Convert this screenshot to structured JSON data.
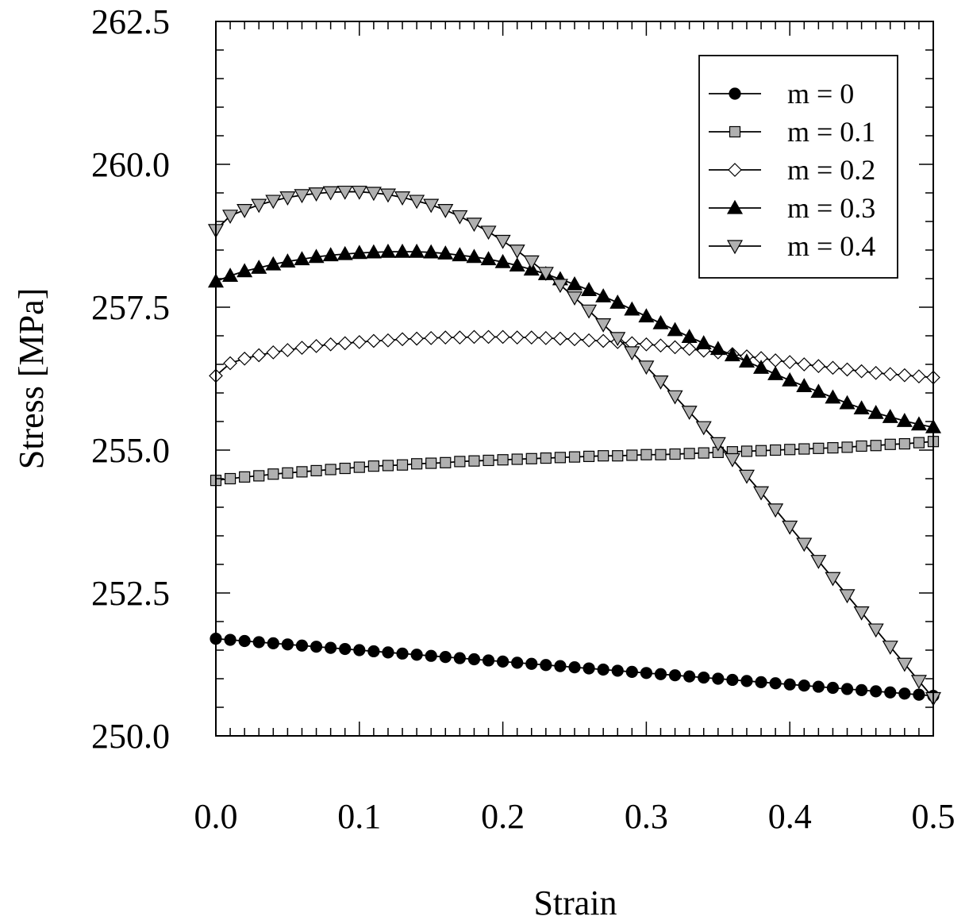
{
  "chart_data": {
    "type": "line",
    "title": "",
    "xlabel": "Strain",
    "ylabel": "Stress [MPa]",
    "xlim": [
      0.0,
      0.5
    ],
    "ylim": [
      250.0,
      262.5
    ],
    "x_ticks": [
      "0.0",
      "0.1",
      "0.2",
      "0.3",
      "0.4",
      "0.5"
    ],
    "y_ticks": [
      "250.0",
      "252.5",
      "255.0",
      "257.5",
      "260.0",
      "262.5"
    ],
    "grid": false,
    "legend_position": "top-right",
    "x": [
      0,
      0.01,
      0.02,
      0.03,
      0.04,
      0.05,
      0.06,
      0.07,
      0.08,
      0.09,
      0.1,
      0.11,
      0.12,
      0.13,
      0.14,
      0.15,
      0.16,
      0.17,
      0.18,
      0.19,
      0.2,
      0.21,
      0.22,
      0.23,
      0.24,
      0.25,
      0.26,
      0.27,
      0.28,
      0.29,
      0.3,
      0.31,
      0.32,
      0.33,
      0.34,
      0.35,
      0.36,
      0.37,
      0.38,
      0.39,
      0.4,
      0.41,
      0.42,
      0.43,
      0.44,
      0.45,
      0.46,
      0.47,
      0.48,
      0.49,
      0.5
    ],
    "series": [
      {
        "name": "m = 0",
        "marker": "circle",
        "fill": "#000000",
        "values": [
          251.7,
          251.68,
          251.66,
          251.64,
          251.62,
          251.6,
          251.58,
          251.56,
          251.54,
          251.52,
          251.5,
          251.48,
          251.46,
          251.44,
          251.42,
          251.4,
          251.38,
          251.36,
          251.34,
          251.32,
          251.3,
          251.28,
          251.26,
          251.24,
          251.22,
          251.2,
          251.18,
          251.16,
          251.14,
          251.12,
          251.1,
          251.08,
          251.06,
          251.04,
          251.02,
          251.0,
          250.98,
          250.96,
          250.94,
          250.92,
          250.9,
          250.88,
          250.86,
          250.84,
          250.82,
          250.8,
          250.78,
          250.76,
          250.74,
          250.72,
          250.7
        ]
      },
      {
        "name": "m = 0.1",
        "marker": "square",
        "fill": "#b0b0b0",
        "values": [
          254.47,
          254.5,
          254.53,
          254.55,
          254.58,
          254.6,
          254.62,
          254.64,
          254.66,
          254.68,
          254.7,
          254.72,
          254.73,
          254.74,
          254.76,
          254.77,
          254.78,
          254.8,
          254.81,
          254.82,
          254.83,
          254.84,
          254.85,
          254.86,
          254.87,
          254.88,
          254.89,
          254.9,
          254.9,
          254.91,
          254.92,
          254.92,
          254.93,
          254.94,
          254.95,
          254.96,
          254.97,
          254.98,
          254.99,
          255.0,
          255.01,
          255.02,
          255.03,
          255.04,
          255.05,
          255.07,
          255.08,
          255.1,
          255.11,
          255.13,
          255.15
        ]
      },
      {
        "name": "m = 0.2",
        "marker": "diamond",
        "fill": "#ffffff",
        "values": [
          256.3,
          256.52,
          256.6,
          256.66,
          256.71,
          256.75,
          256.79,
          256.82,
          256.85,
          256.87,
          256.89,
          256.91,
          256.92,
          256.94,
          256.95,
          256.96,
          256.97,
          256.97,
          256.98,
          256.98,
          256.98,
          256.97,
          256.97,
          256.96,
          256.95,
          256.94,
          256.92,
          256.91,
          256.89,
          256.87,
          256.85,
          256.83,
          256.8,
          256.77,
          256.74,
          256.71,
          256.68,
          256.64,
          256.61,
          256.57,
          256.54,
          256.5,
          256.47,
          256.44,
          256.41,
          256.38,
          256.35,
          256.33,
          256.31,
          256.29,
          256.27
        ]
      },
      {
        "name": "m = 0.3",
        "marker": "triangle-up",
        "fill": "#000000",
        "values": [
          257.95,
          258.05,
          258.13,
          258.19,
          258.25,
          258.3,
          258.34,
          258.38,
          258.41,
          258.43,
          258.45,
          258.46,
          258.47,
          258.47,
          258.47,
          258.46,
          258.44,
          258.41,
          258.38,
          258.34,
          258.29,
          258.23,
          258.16,
          258.08,
          257.99,
          257.9,
          257.8,
          257.69,
          257.58,
          257.46,
          257.34,
          257.22,
          257.1,
          256.98,
          256.87,
          256.77,
          256.66,
          256.55,
          256.44,
          256.33,
          256.22,
          256.12,
          256.02,
          255.92,
          255.82,
          255.73,
          255.65,
          255.58,
          255.51,
          255.45,
          255.4
        ]
      },
      {
        "name": "m = 0.4",
        "marker": "triangle-down",
        "fill": "#b0b0b0",
        "values": [
          258.85,
          259.1,
          259.2,
          259.29,
          259.36,
          259.42,
          259.46,
          259.49,
          259.51,
          259.52,
          259.52,
          259.5,
          259.47,
          259.42,
          259.36,
          259.29,
          259.2,
          259.09,
          258.96,
          258.82,
          258.66,
          258.49,
          258.3,
          258.1,
          257.89,
          257.67,
          257.44,
          257.2,
          256.96,
          256.71,
          256.46,
          256.2,
          255.94,
          255.67,
          255.4,
          255.12,
          254.84,
          254.55,
          254.26,
          253.96,
          253.66,
          253.36,
          253.06,
          252.76,
          252.46,
          252.16,
          251.86,
          251.56,
          251.26,
          250.96,
          250.66
        ]
      }
    ]
  }
}
